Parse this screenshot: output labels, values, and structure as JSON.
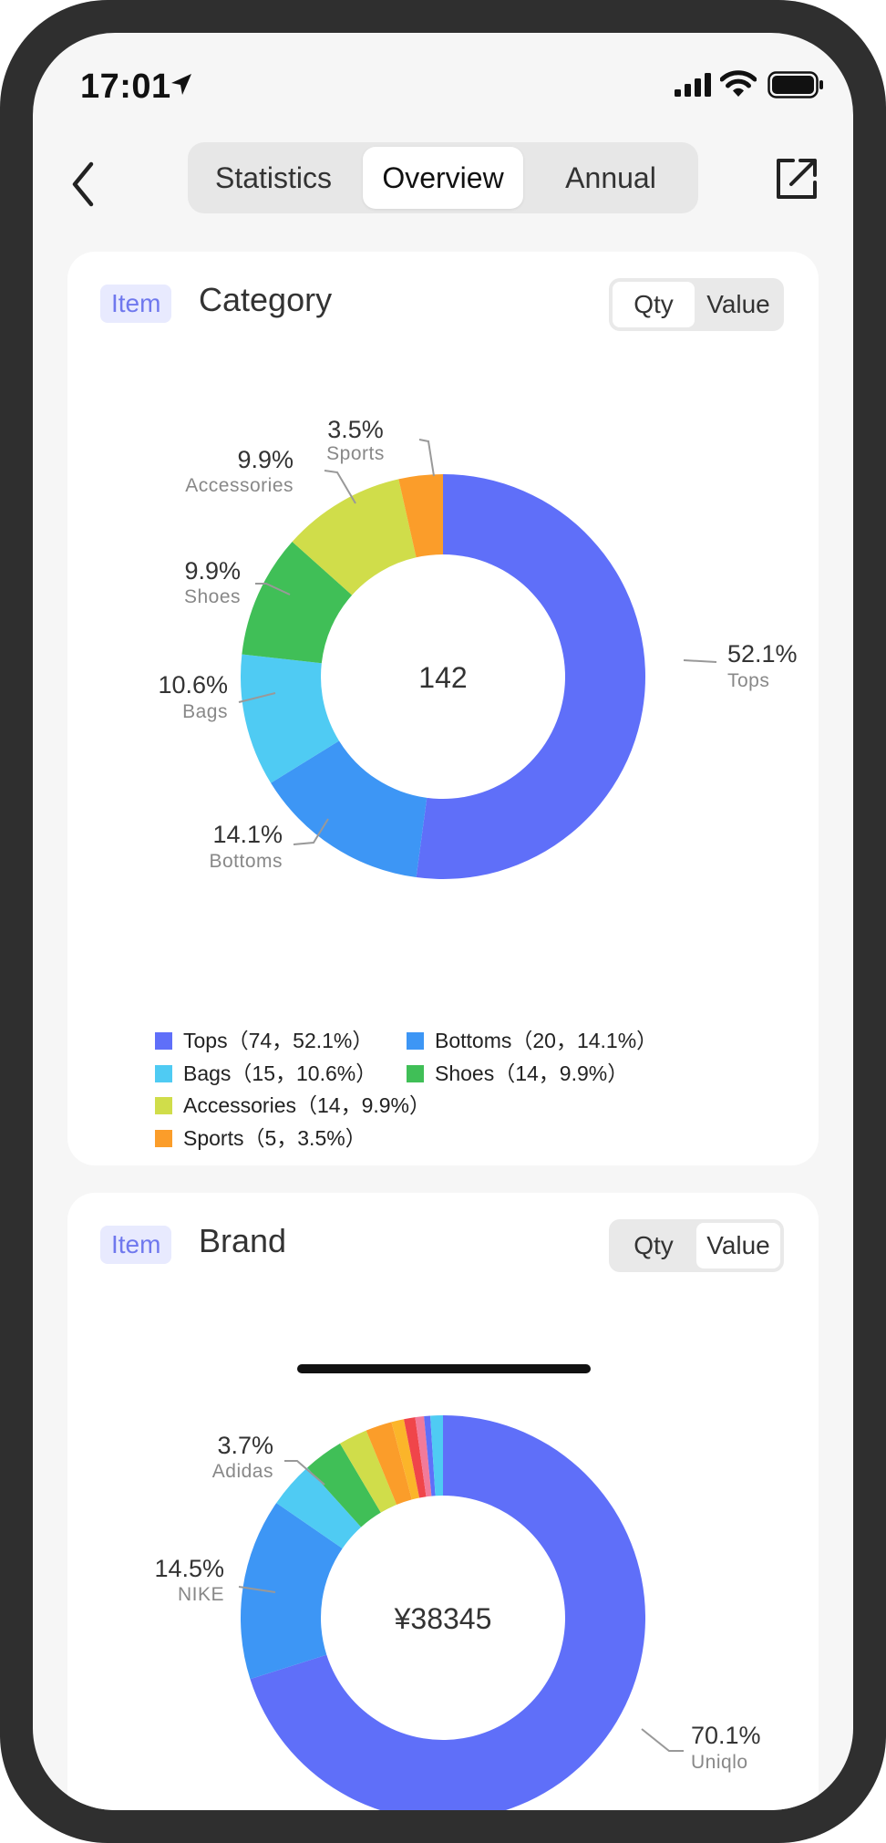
{
  "status_bar": {
    "time": "17:01"
  },
  "nav": {
    "tabs": [
      {
        "label": "Statistics",
        "active": false
      },
      {
        "label": "Overview",
        "active": true
      },
      {
        "label": "Annual",
        "active": false
      }
    ]
  },
  "category_card": {
    "tag": "Item",
    "title": "Category",
    "toggle": {
      "qty": "Qty",
      "value": "Value",
      "active": "Qty"
    },
    "center_value": "142",
    "legend": [
      "Tops（74，52.1%）",
      "Bottoms（20，14.1%）",
      "Bags（15，10.6%）",
      "Shoes（14，9.9%）",
      "Accessories（14，9.9%）",
      "Sports（5，3.5%）"
    ]
  },
  "brand_card": {
    "tag": "Item",
    "title": "Brand",
    "toggle": {
      "qty": "Qty",
      "value": "Value",
      "active": "Value"
    },
    "center_value": "¥38345"
  },
  "colors": {
    "tops": "#5f6ff9",
    "bottoms": "#3d96f5",
    "bags": "#4fcbf3",
    "shoes": "#40bf57",
    "accessories": "#d0dd4a",
    "sports": "#fb9d2a",
    "red": "#f0454a",
    "pink": "#f27a9a",
    "tag_bg": "#e8eafe",
    "tag_text": "#6f78ee"
  },
  "chart_data": [
    {
      "type": "pie",
      "title": "Category",
      "center_label": "142",
      "categories": [
        "Tops",
        "Bottoms",
        "Bags",
        "Shoes",
        "Accessories",
        "Sports"
      ],
      "values": [
        74,
        20,
        15,
        14,
        14,
        5
      ],
      "percent_labels": [
        "52.1%",
        "14.1%",
        "10.6%",
        "9.9%",
        "9.9%",
        "3.5%"
      ],
      "colors": [
        "#5f6ff9",
        "#3d96f5",
        "#4fcbf3",
        "#40bf57",
        "#d0dd4a",
        "#fb9d2a"
      ],
      "legend": "bottom"
    },
    {
      "type": "pie",
      "title": "Brand",
      "center_label": "¥38345",
      "categories": [
        "Uniqlo",
        "NIKE",
        "Adidas"
      ],
      "values": [
        70.1,
        14.5,
        3.7
      ],
      "percent_labels": [
        "70.1%",
        "14.5%",
        "3.7%"
      ],
      "colors": [
        "#5f6ff9",
        "#3d96f5",
        "#4fcbf3"
      ],
      "unlabeled_segments": [
        {
          "percent": 3.2,
          "color": "#40bf57"
        },
        {
          "percent": 2.3,
          "color": "#d0dd4a"
        },
        {
          "percent": 2.1,
          "color": "#fb9d2a"
        },
        {
          "percent": 1.0,
          "color": "#fbb52a"
        },
        {
          "percent": 0.9,
          "color": "#f0454a"
        },
        {
          "percent": 0.7,
          "color": "#f27a9a"
        },
        {
          "percent": 0.5,
          "color": "#5f6ff9"
        },
        {
          "percent": 1.0,
          "color": "#4fcbf3"
        }
      ]
    }
  ]
}
